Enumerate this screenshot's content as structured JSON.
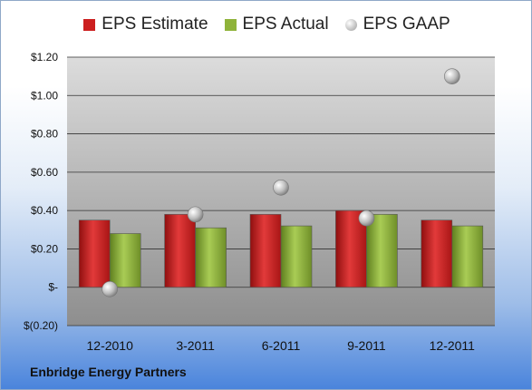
{
  "chart_data": {
    "type": "bar",
    "categories": [
      "12-2010",
      "3-2011",
      "6-2011",
      "9-2011",
      "12-2011"
    ],
    "series": [
      {
        "name": "EPS Estimate",
        "kind": "bar",
        "color": "#cc1f1f",
        "values": [
          0.35,
          0.38,
          0.38,
          0.4,
          0.35
        ]
      },
      {
        "name": "EPS Actual",
        "kind": "bar",
        "color": "#8fb33a",
        "values": [
          0.28,
          0.31,
          0.32,
          0.38,
          0.32
        ]
      },
      {
        "name": "EPS GAAP",
        "kind": "scatter",
        "color": "#b8b8b8",
        "values": [
          -0.01,
          0.38,
          0.52,
          0.36,
          1.1
        ]
      }
    ],
    "yticks": [
      {
        "value": 1.2,
        "label": "$1.20"
      },
      {
        "value": 1.0,
        "label": "$1.00"
      },
      {
        "value": 0.8,
        "label": "$0.80"
      },
      {
        "value": 0.6,
        "label": "$0.60"
      },
      {
        "value": 0.4,
        "label": "$0.40"
      },
      {
        "value": 0.2,
        "label": "$0.20"
      },
      {
        "value": 0.0,
        "label": "$-"
      },
      {
        "value": -0.2,
        "label": "$(0.20)"
      }
    ],
    "ylim": [
      -0.2,
      1.2
    ],
    "grid": true,
    "legend_position": "top",
    "footer": "Enbridge Energy Partners"
  }
}
